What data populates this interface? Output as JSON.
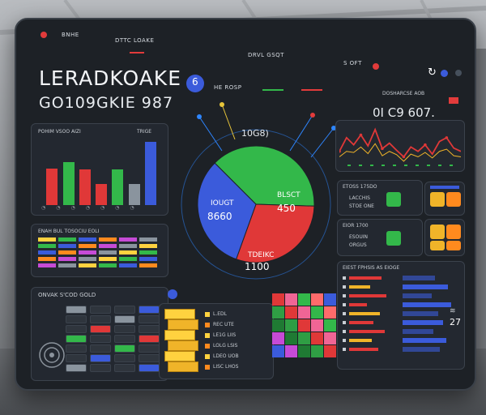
{
  "topbar": {
    "left_a": "BNHE",
    "left_b": "DTTC LOAKE",
    "center": "DRVL GSQT",
    "right_a": "S OFT"
  },
  "brand": {
    "title": "LERADKOAKE",
    "subtitle": "GO109GKIE 987"
  },
  "header_mid": {
    "label": "HE ROSP"
  },
  "header_right": {
    "label": "DOSHARCSE AOB",
    "value": "0I C9 607."
  },
  "left_chart": {
    "title": "POHIM VSOO AIZI",
    "badge": "TRIGE"
  },
  "pie_panel": {
    "top_value": "10G8)",
    "slices": [
      {
        "name": "IOUGT",
        "value": "8660"
      },
      {
        "name": "BLSCT",
        "value": "450"
      },
      {
        "name": "TDEIKC",
        "value": "1100"
      }
    ]
  },
  "rows_panel": {
    "title": "ENAH BUL TOSOCIU EOLI"
  },
  "bottom_left": {
    "title": "ONVAK S'COD GOLD"
  },
  "list_panel": {
    "items": [
      {
        "label": "L.EDL"
      },
      {
        "label": "REC UTE"
      },
      {
        "label": "LE1G LIIS"
      },
      {
        "label": "LOLG LSIS"
      },
      {
        "label": "LDEO UOB"
      },
      {
        "label": "LISC LHOS"
      }
    ]
  },
  "mid_right_a": {
    "title": "ETOSS 175DO",
    "row1": "LACCHIS",
    "row2": "STOE ONE"
  },
  "mid_right_b": {
    "title": "EIOR 1700",
    "row1": "ESOUIN",
    "row2": "ORGUS"
  },
  "right_table": {
    "title": "EIEST FPHSIS AS EIOGE",
    "value": "27"
  },
  "colors": {
    "accent_blue": "#3b5bdb",
    "red": "#e03838",
    "green": "#33b84a"
  },
  "chart_data": [
    {
      "type": "bar",
      "title": "POHIM VSOO AIZI",
      "categories": [
        "1",
        "2",
        "3",
        "4",
        "5",
        "6",
        "7"
      ],
      "series": [
        {
          "values": [
            45,
            53,
            44,
            26,
            44,
            26,
            78
          ]
        }
      ],
      "ylim": [
        0,
        80
      ]
    },
    {
      "type": "pie",
      "categories": [
        "IOUGT",
        "BLSCT",
        "TDEIKC"
      ],
      "values": [
        38,
        30,
        32
      ]
    },
    {
      "type": "line",
      "x": [
        1,
        2,
        3,
        4,
        5,
        6,
        7,
        8,
        9,
        10,
        11,
        12,
        13,
        14,
        15,
        16,
        17,
        18
      ],
      "series": [
        {
          "values": [
            30,
            55,
            42,
            60,
            40,
            70,
            35,
            45,
            32,
            20,
            38,
            30,
            42,
            25,
            48,
            55,
            36,
            30
          ]
        },
        {
          "values": [
            20,
            30,
            28,
            38,
            26,
            44,
            22,
            30,
            24,
            12,
            25,
            20,
            28,
            18,
            30,
            34,
            22,
            20
          ]
        }
      ],
      "ylim": [
        0,
        80
      ]
    }
  ]
}
